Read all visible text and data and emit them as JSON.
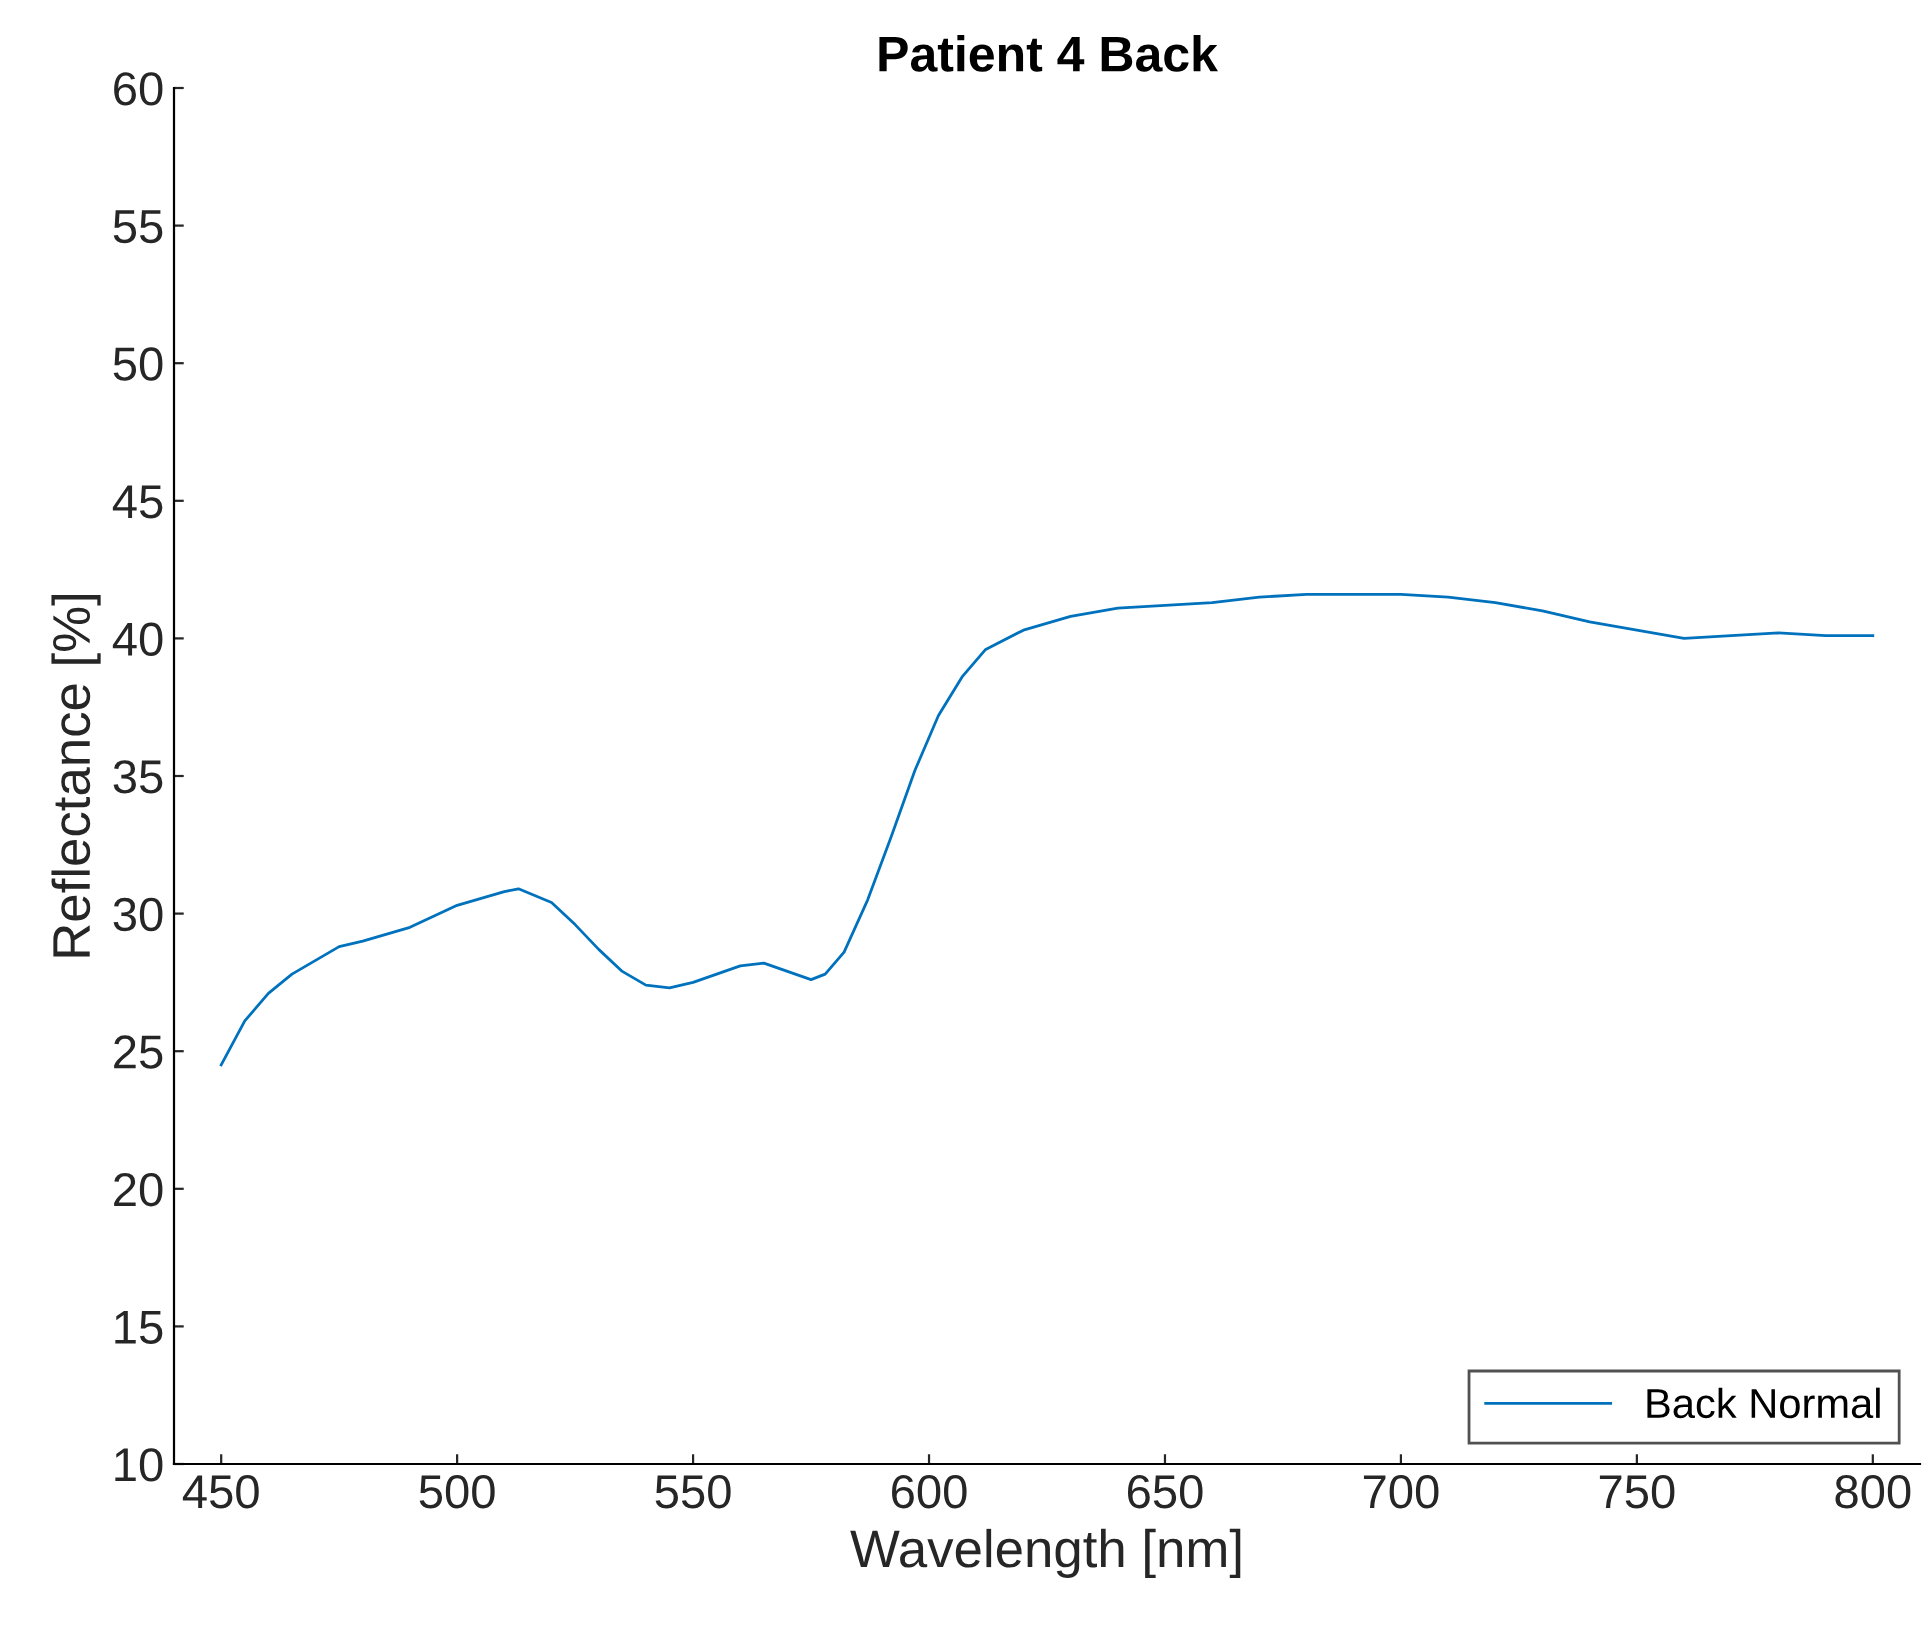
{
  "chart_data": {
    "type": "line",
    "title": "Patient 4 Back",
    "xlabel": "Wavelength [nm]",
    "ylabel": "Reflectance [%]",
    "xlim": [
      440,
      810
    ],
    "xticks": [
      450,
      500,
      550,
      600,
      650,
      700,
      750,
      800
    ],
    "ylim": [
      10,
      60
    ],
    "yticks": [
      10,
      15,
      20,
      25,
      30,
      35,
      40,
      45,
      50,
      55,
      60
    ],
    "grid": false,
    "legend": "bottom right",
    "series": [
      {
        "name": "Back Normal",
        "color": "#0072bd",
        "x": [
          450,
          455,
          460,
          465,
          470,
          475,
          480,
          490,
          500,
          510,
          513,
          520,
          525,
          530,
          535,
          540,
          545,
          550,
          555,
          560,
          565,
          570,
          575,
          578,
          582,
          587,
          592,
          597,
          602,
          607,
          612,
          620,
          630,
          640,
          650,
          660,
          670,
          680,
          690,
          700,
          710,
          720,
          730,
          740,
          750,
          760,
          770,
          780,
          790,
          800
        ],
        "values": [
          24.5,
          26.1,
          27.1,
          27.8,
          28.3,
          28.8,
          29.0,
          29.5,
          30.3,
          30.8,
          30.9,
          30.4,
          29.6,
          28.7,
          27.9,
          27.4,
          27.3,
          27.5,
          27.8,
          28.1,
          28.2,
          27.9,
          27.6,
          27.8,
          28.6,
          30.5,
          32.8,
          35.2,
          37.2,
          38.6,
          39.6,
          40.3,
          40.8,
          41.1,
          41.2,
          41.3,
          41.5,
          41.6,
          41.6,
          41.6,
          41.5,
          41.3,
          41.0,
          40.6,
          40.3,
          40.0,
          40.1,
          40.2,
          40.1,
          40.1
        ]
      }
    ]
  }
}
